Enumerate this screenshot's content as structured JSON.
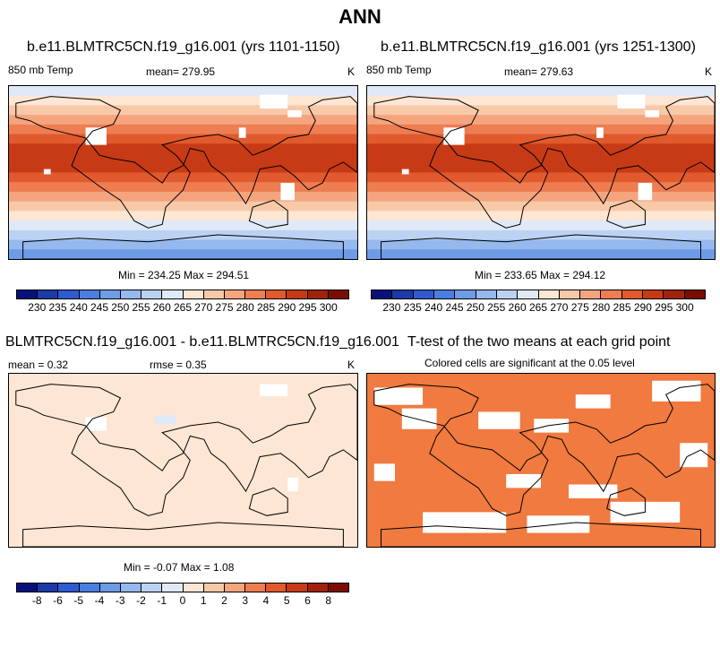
{
  "main_title": "ANN",
  "panel1": {
    "title": "b.e11.BLMTRC5CN.f19_g16.001 (yrs 1101-1150)",
    "left_label": "850 mb Temp",
    "center_label": "mean= 279.95",
    "units": "K",
    "minmax": "Min = 234.25 Max = 294.51"
  },
  "panel2": {
    "title": "b.e11.BLMTRC5CN.f19_g16.001 (yrs 1251-1300)",
    "left_label": "850 mb Temp",
    "center_label": "mean= 279.63",
    "units": "K",
    "minmax": "Min = 233.65 Max = 294.12"
  },
  "panel3": {
    "title": "BLMTRC5CN.f19_g16.001 - b.e11.BLMTRC5CN.f19_g16.001",
    "mean_label": "mean =   0.32",
    "rmse_label": "rmse =   0.35",
    "units": "K",
    "minmax": "Min =  -0.07 Max =   1.08"
  },
  "panel4": {
    "title": "T-test of the two means at each grid point",
    "subtitle": "Colored cells are significant at the 0.05 level"
  },
  "colorbar_temp": {
    "labels": [
      "230",
      "235",
      "240",
      "245",
      "250",
      "255",
      "260",
      "265",
      "270",
      "275",
      "280",
      "285",
      "290",
      "295",
      "300"
    ]
  },
  "colorbar_diff": {
    "labels": [
      "-8",
      "-6",
      "-5",
      "-4",
      "-3",
      "-2",
      "-1",
      "0",
      "1",
      "2",
      "3",
      "4",
      "5",
      "6",
      "8"
    ]
  },
  "colors": {
    "palette": [
      "#08117a",
      "#1c3aa6",
      "#2f5ad0",
      "#4a7ee0",
      "#6d9be6",
      "#95b8ed",
      "#bcd2f3",
      "#dfe9f8",
      "#fde6d3",
      "#f8c9a8",
      "#f4a57e",
      "#ee7d52",
      "#e05a2d",
      "#c73a16",
      "#a1220c",
      "#7a0c04"
    ],
    "ttest_fill": "#f07a3f",
    "diff_bg": "#fde6d3",
    "diff_blue": "#dfe9f8"
  }
}
